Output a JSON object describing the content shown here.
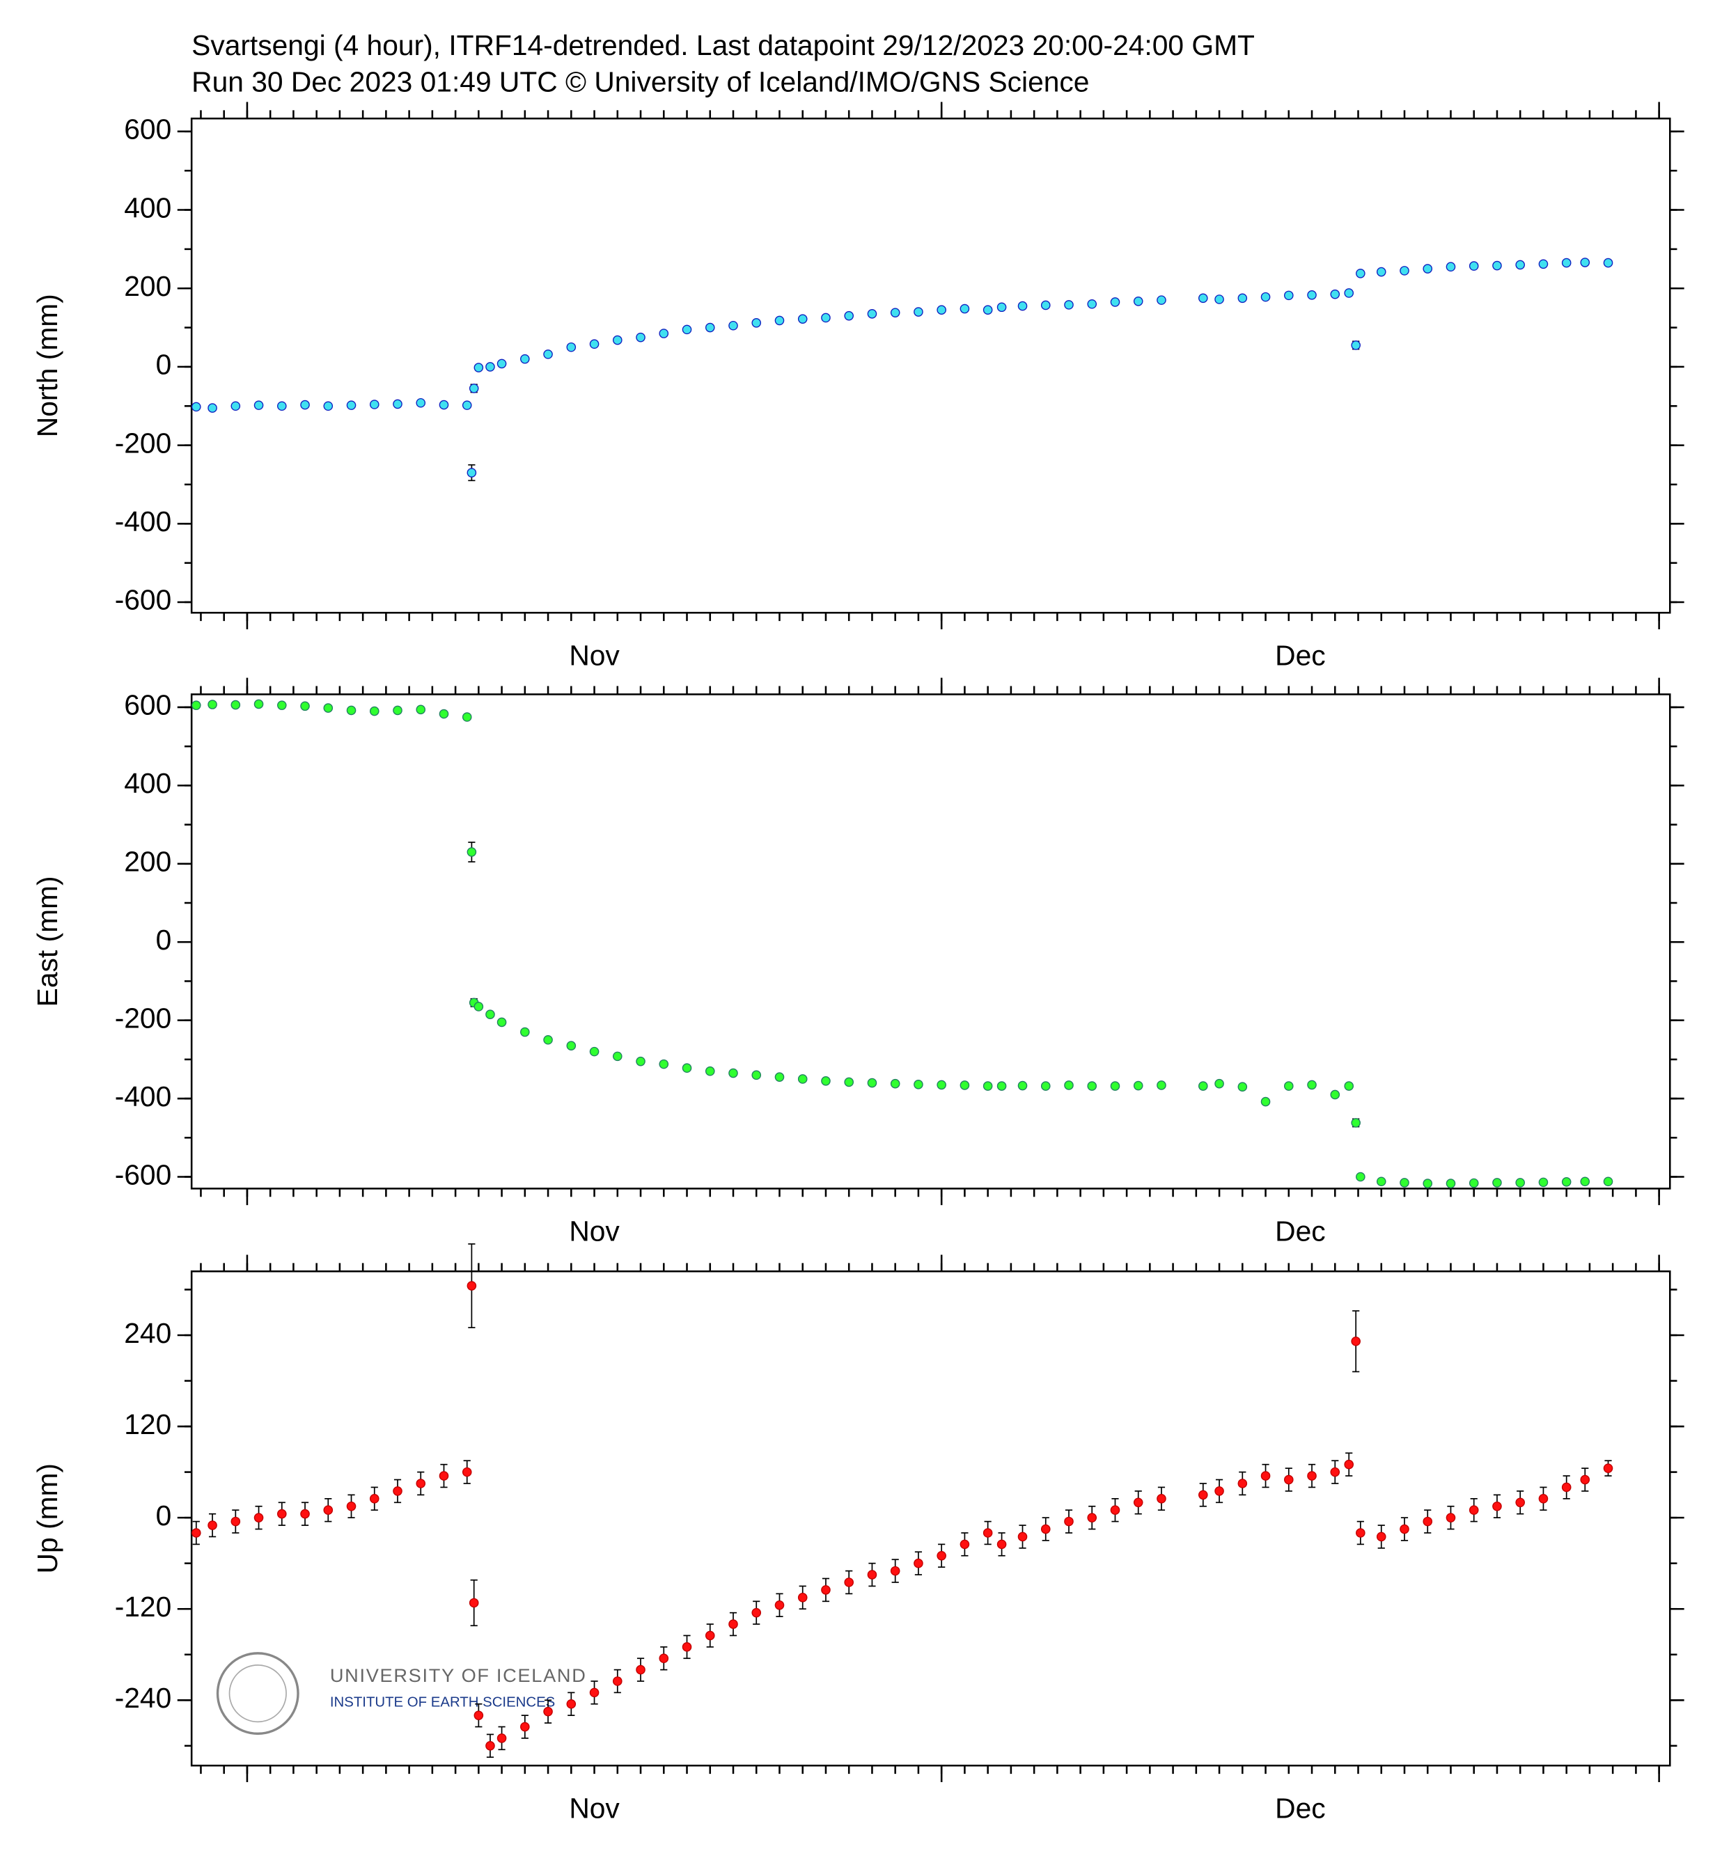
{
  "header": {
    "title": "Svartsengi (4 hour), ITRF14-detrended.  Last datapoint 29/12/2023 20:00-24:00 GMT",
    "subtitle": "Run 30 Dec 2023 01:49 UTC     © University of Iceland/IMO/GNS Science"
  },
  "logo": {
    "name": "UNIVERSITY OF ICELAND",
    "institute": "INSTITUTE OF EARTH SCIENCES"
  },
  "chart_data": [
    {
      "type": "scatter",
      "ylabel": "North (mm)",
      "color": "#40e0f0",
      "edge": "#1020c0",
      "xlim": [
        -2.4,
        61.47
      ],
      "xticks": [
        {
          "value": 15,
          "label": "Nov"
        },
        {
          "value": 45.5,
          "label": "Dec"
        }
      ],
      "xmajor": [
        0,
        30,
        61
      ],
      "xminor": 1,
      "ylim": [
        -627,
        633
      ],
      "yticks": [
        -600,
        -400,
        -200,
        0,
        200,
        400,
        600
      ],
      "yminor": 100,
      "x": [
        -2.2,
        -1.5,
        -0.5,
        0.5,
        1.5,
        2.5,
        3.5,
        4.5,
        5.5,
        6.5,
        7.5,
        8.5,
        9.5,
        9.7,
        9.8,
        10,
        10.5,
        11,
        12,
        13,
        14,
        15,
        16,
        17,
        18,
        19,
        20,
        21,
        22,
        23,
        24,
        25,
        26,
        27,
        28,
        29,
        30,
        31,
        32,
        32.6,
        33.5,
        34.5,
        35.5,
        36.5,
        37.5,
        38.5,
        39.5,
        41.3,
        42,
        43,
        44,
        45,
        46,
        47,
        47.6,
        47.9,
        48.1,
        49,
        50,
        51,
        52,
        53,
        54,
        55,
        56,
        57,
        57.8,
        58.8
      ],
      "values": [
        -102,
        -105,
        -100,
        -98,
        -100,
        -97,
        -100,
        -98,
        -96,
        -95,
        -92,
        -97,
        -98,
        -270,
        -55,
        -2,
        0,
        8,
        20,
        32,
        50,
        58,
        68,
        75,
        85,
        95,
        100,
        105,
        112,
        118,
        122,
        125,
        130,
        135,
        138,
        140,
        145,
        148,
        145,
        152,
        155,
        157,
        158,
        160,
        165,
        167,
        170,
        175,
        172,
        175,
        178,
        182,
        183,
        185,
        188,
        55,
        238,
        242,
        245,
        250,
        255,
        257,
        258,
        260,
        262,
        265,
        266,
        265
      ],
      "errors": [
        5,
        5,
        5,
        5,
        5,
        5,
        5,
        5,
        5,
        5,
        5,
        5,
        5,
        20,
        10,
        5,
        5,
        5,
        5,
        5,
        5,
        5,
        5,
        5,
        5,
        5,
        5,
        5,
        5,
        5,
        5,
        5,
        5,
        5,
        5,
        5,
        5,
        5,
        5,
        5,
        5,
        5,
        5,
        5,
        5,
        5,
        5,
        5,
        5,
        5,
        5,
        5,
        5,
        5,
        5,
        10,
        5,
        5,
        5,
        5,
        5,
        5,
        5,
        5,
        5,
        5,
        5,
        5
      ]
    },
    {
      "type": "scatter",
      "ylabel": "East (mm)",
      "color": "#30ff30",
      "edge": "#208060",
      "xlim": [
        -2.4,
        61.47
      ],
      "xticks": [
        {
          "value": 15,
          "label": "Nov"
        },
        {
          "value": 45.5,
          "label": "Dec"
        }
      ],
      "xmajor": [
        0,
        30,
        61
      ],
      "xminor": 1,
      "ylim": [
        -630,
        633
      ],
      "yticks": [
        -600,
        -400,
        -200,
        0,
        200,
        400,
        600
      ],
      "yminor": 100,
      "x": [
        -2.2,
        -1.5,
        -0.5,
        0.5,
        1.5,
        2.5,
        3.5,
        4.5,
        5.5,
        6.5,
        7.5,
        8.5,
        9.5,
        9.7,
        9.8,
        10,
        10.5,
        11,
        12,
        13,
        14,
        15,
        16,
        17,
        18,
        19,
        20,
        21,
        22,
        23,
        24,
        25,
        26,
        27,
        28,
        29,
        30,
        31,
        32,
        32.6,
        33.5,
        34.5,
        35.5,
        36.5,
        37.5,
        38.5,
        39.5,
        41.3,
        42,
        43,
        44,
        45,
        46,
        47,
        47.6,
        47.9,
        48.1,
        49,
        50,
        51,
        52,
        53,
        54,
        55,
        56,
        57,
        57.8,
        58.8
      ],
      "values": [
        605,
        607,
        606,
        608,
        605,
        603,
        598,
        592,
        590,
        592,
        594,
        583,
        575,
        230,
        -155,
        -165,
        -185,
        -205,
        -230,
        -250,
        -265,
        -280,
        -292,
        -305,
        -312,
        -322,
        -330,
        -335,
        -340,
        -345,
        -350,
        -355,
        -358,
        -360,
        -362,
        -364,
        -365,
        -366,
        -368,
        -368,
        -367,
        -368,
        -366,
        -368,
        -368,
        -367,
        -366,
        -368,
        -362,
        -370,
        -408,
        -368,
        -365,
        -390,
        -368,
        -462,
        -600,
        -612,
        -615,
        -617,
        -617,
        -616,
        -615,
        -615,
        -614,
        -613,
        -612,
        -612
      ],
      "errors": [
        5,
        5,
        5,
        5,
        5,
        5,
        5,
        5,
        5,
        5,
        5,
        5,
        5,
        25,
        10,
        5,
        5,
        5,
        5,
        5,
        5,
        5,
        5,
        5,
        5,
        5,
        5,
        5,
        5,
        5,
        5,
        5,
        5,
        5,
        5,
        5,
        5,
        5,
        5,
        5,
        5,
        5,
        5,
        5,
        5,
        5,
        5,
        5,
        5,
        5,
        5,
        5,
        5,
        5,
        5,
        10,
        5,
        5,
        5,
        5,
        5,
        5,
        5,
        5,
        5,
        5,
        5,
        5
      ]
    },
    {
      "type": "scatter",
      "ylabel": "Up (mm)",
      "color": "#ff1010",
      "edge": "#c00000",
      "xlim": [
        -2.4,
        61.47
      ],
      "xticks": [
        {
          "value": 15,
          "label": "Nov"
        },
        {
          "value": 45.5,
          "label": "Dec"
        }
      ],
      "xmajor": [
        0,
        30,
        61
      ],
      "xminor": 1,
      "ylim": [
        -326,
        324
      ],
      "yticks": [
        -240,
        -120,
        0,
        120,
        240
      ],
      "yminor": 60,
      "x": [
        -2.2,
        -1.5,
        -0.5,
        0.5,
        1.5,
        2.5,
        3.5,
        4.5,
        5.5,
        6.5,
        7.5,
        8.5,
        9.5,
        9.7,
        9.8,
        10,
        10.5,
        11,
        12,
        13,
        14,
        15,
        16,
        17,
        18,
        19,
        20,
        21,
        22,
        23,
        24,
        25,
        26,
        27,
        28,
        29,
        30,
        31,
        32,
        32.6,
        33.5,
        34.5,
        35.5,
        36.5,
        37.5,
        38.5,
        39.5,
        41.3,
        42,
        43,
        44,
        45,
        46,
        47,
        47.6,
        47.9,
        48.1,
        49,
        50,
        51,
        52,
        53,
        54,
        55,
        56,
        57,
        57.8,
        58.8
      ],
      "values": [
        -20,
        -10,
        -5,
        0,
        5,
        5,
        10,
        15,
        25,
        35,
        45,
        55,
        60,
        305,
        -112,
        -260,
        -300,
        -290,
        -275,
        -255,
        -245,
        -230,
        -215,
        -200,
        -185,
        -170,
        -155,
        -140,
        -125,
        -115,
        -105,
        -95,
        -85,
        -75,
        -70,
        -60,
        -50,
        -35,
        -20,
        -35,
        -25,
        -15,
        -5,
        0,
        10,
        20,
        25,
        30,
        35,
        45,
        55,
        50,
        55,
        60,
        70,
        232,
        -20,
        -25,
        -15,
        -5,
        0,
        10,
        15,
        20,
        25,
        40,
        50,
        65
      ],
      "errors": [
        15,
        15,
        15,
        15,
        15,
        15,
        15,
        15,
        15,
        15,
        15,
        15,
        15,
        55,
        30,
        15,
        15,
        15,
        15,
        15,
        15,
        15,
        15,
        15,
        15,
        15,
        15,
        15,
        15,
        15,
        15,
        15,
        15,
        15,
        15,
        15,
        15,
        15,
        15,
        15,
        15,
        15,
        15,
        15,
        15,
        15,
        15,
        15,
        15,
        15,
        15,
        15,
        15,
        15,
        15,
        40,
        15,
        15,
        15,
        15,
        15,
        15,
        15,
        15,
        15,
        15,
        15,
        10
      ]
    }
  ]
}
